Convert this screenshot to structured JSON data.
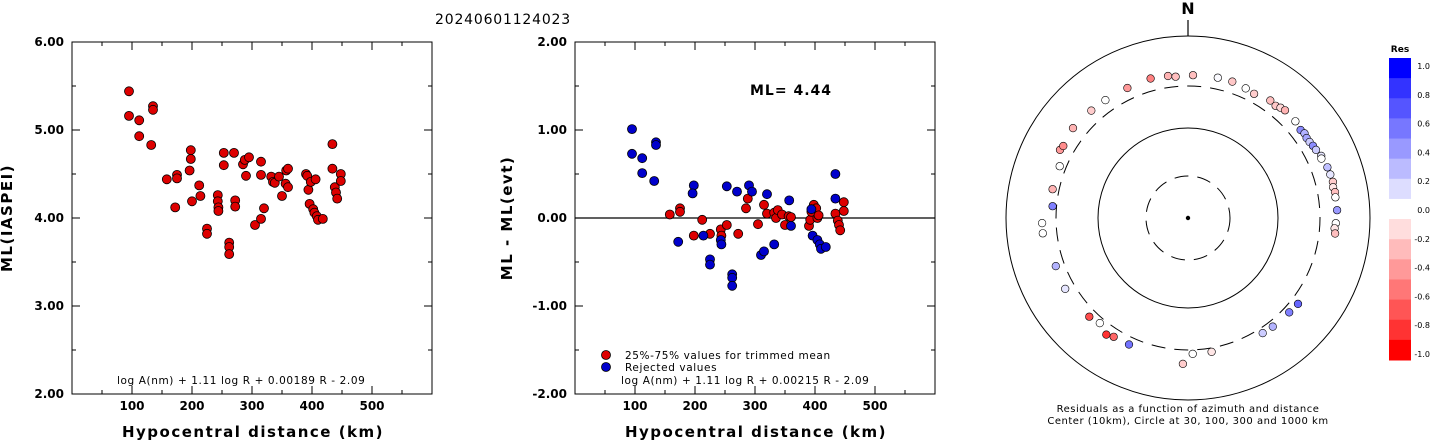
{
  "title": "20240601124023",
  "chart_data": [
    {
      "type": "scatter",
      "xlabel": "Hypocentral distance (km)",
      "ylabel": "ML(IASPEI)",
      "xlim": [
        0,
        600
      ],
      "ylim": [
        2.0,
        6.0
      ],
      "x_ticks": [
        "100",
        "200",
        "300",
        "400",
        "500"
      ],
      "y_ticks": [
        "2.00",
        "3.00",
        "4.00",
        "5.00",
        "6.00"
      ],
      "formula": "log A(nm) + 1.11 log R + 0.00189 R - 2.09",
      "series": [
        {
          "color": "#dd0000",
          "points": [
            [
              95,
              5.44
            ],
            [
              95,
              5.16
            ],
            [
              112,
              5.11
            ],
            [
              112,
              4.93
            ],
            [
              135,
              5.27
            ],
            [
              135,
              5.23
            ],
            [
              132,
              4.83
            ],
            [
              158,
              4.44
            ],
            [
              172,
              4.12
            ],
            [
              175,
              4.49
            ],
            [
              175,
              4.45
            ],
            [
              198,
              4.77
            ],
            [
              198,
              4.67
            ],
            [
              196,
              4.54
            ],
            [
              200,
              4.19
            ],
            [
              212,
              4.37
            ],
            [
              214,
              4.25
            ],
            [
              225,
              3.88
            ],
            [
              225,
              3.82
            ],
            [
              243,
              4.26
            ],
            [
              243,
              4.19
            ],
            [
              244,
              4.12
            ],
            [
              244,
              4.08
            ],
            [
              253,
              4.74
            ],
            [
              253,
              4.6
            ],
            [
              262,
              3.72
            ],
            [
              262,
              3.67
            ],
            [
              262,
              3.59
            ],
            [
              270,
              4.74
            ],
            [
              272,
              4.2
            ],
            [
              272,
              4.13
            ],
            [
              285,
              4.61
            ],
            [
              288,
              4.66
            ],
            [
              290,
              4.48
            ],
            [
              295,
              4.69
            ],
            [
              305,
              3.92
            ],
            [
              315,
              4.64
            ],
            [
              315,
              4.49
            ],
            [
              315,
              3.99
            ],
            [
              320,
              4.11
            ],
            [
              332,
              4.47
            ],
            [
              335,
              4.41
            ],
            [
              338,
              4.4
            ],
            [
              345,
              4.47
            ],
            [
              350,
              4.25
            ],
            [
              356,
              4.39
            ],
            [
              357,
              4.54
            ],
            [
              360,
              4.35
            ],
            [
              360,
              4.56
            ],
            [
              390,
              4.5
            ],
            [
              392,
              4.48
            ],
            [
              394,
              4.32
            ],
            [
              396,
              4.16
            ],
            [
              398,
              4.41
            ],
            [
              402,
              4.1
            ],
            [
              404,
              4.06
            ],
            [
              406,
              4.44
            ],
            [
              408,
              4.02
            ],
            [
              410,
              3.98
            ],
            [
              418,
              3.99
            ],
            [
              434,
              4.84
            ],
            [
              434,
              4.56
            ],
            [
              438,
              4.35
            ],
            [
              440,
              4.29
            ],
            [
              442,
              4.22
            ],
            [
              448,
              4.5
            ],
            [
              448,
              4.42
            ]
          ]
        }
      ]
    },
    {
      "type": "scatter",
      "xlabel": "Hypocentral distance (km)",
      "ylabel": "ML - ML(evt)",
      "xlim": [
        0,
        600
      ],
      "ylim": [
        -2.0,
        2.0
      ],
      "x_ticks": [
        "100",
        "200",
        "300",
        "400",
        "500"
      ],
      "y_ticks": [
        "-2.00",
        "-1.00",
        "0.00",
        "1.00",
        "2.00"
      ],
      "annotation": "ML= 4.44",
      "formula": "log A(nm) + 1.11 log R + 0.00215 R - 2.09",
      "series": [
        {
          "name": "25%-75% values for trimmed mean",
          "color": "#dd0000",
          "points": [
            [
              158,
              0.04
            ],
            [
              175,
              0.11
            ],
            [
              175,
              0.07
            ],
            [
              198,
              -0.2
            ],
            [
              212,
              -0.02
            ],
            [
              225,
              -0.18
            ],
            [
              243,
              -0.13
            ],
            [
              244,
              -0.2
            ],
            [
              253,
              -0.08
            ],
            [
              272,
              -0.18
            ],
            [
              285,
              0.11
            ],
            [
              288,
              0.22
            ],
            [
              305,
              -0.07
            ],
            [
              315,
              0.15
            ],
            [
              320,
              0.05
            ],
            [
              332,
              0.06
            ],
            [
              335,
              0.0
            ],
            [
              338,
              0.09
            ],
            [
              345,
              0.04
            ],
            [
              350,
              -0.08
            ],
            [
              356,
              0.02
            ],
            [
              360,
              0.01
            ],
            [
              390,
              -0.09
            ],
            [
              392,
              -0.02
            ],
            [
              394,
              0.07
            ],
            [
              398,
              0.15
            ],
            [
              402,
              0.11
            ],
            [
              404,
              0.0
            ],
            [
              406,
              0.03
            ],
            [
              434,
              0.05
            ],
            [
              438,
              -0.03
            ],
            [
              440,
              -0.08
            ],
            [
              442,
              -0.14
            ],
            [
              448,
              0.08
            ],
            [
              448,
              0.18
            ]
          ]
        },
        {
          "name": "Rejected values",
          "color": "#0000cc",
          "points": [
            [
              95,
              1.01
            ],
            [
              95,
              0.73
            ],
            [
              112,
              0.68
            ],
            [
              112,
              0.51
            ],
            [
              135,
              0.86
            ],
            [
              135,
              0.83
            ],
            [
              132,
              0.42
            ],
            [
              172,
              -0.27
            ],
            [
              198,
              0.37
            ],
            [
              196,
              0.28
            ],
            [
              214,
              -0.2
            ],
            [
              225,
              -0.47
            ],
            [
              225,
              -0.53
            ],
            [
              243,
              -0.25
            ],
            [
              244,
              -0.3
            ],
            [
              253,
              0.36
            ],
            [
              262,
              -0.64
            ],
            [
              262,
              -0.68
            ],
            [
              262,
              -0.77
            ],
            [
              270,
              0.3
            ],
            [
              290,
              0.37
            ],
            [
              295,
              0.3
            ],
            [
              310,
              -0.42
            ],
            [
              315,
              -0.38
            ],
            [
              320,
              0.27
            ],
            [
              332,
              -0.3
            ],
            [
              357,
              0.2
            ],
            [
              360,
              -0.09
            ],
            [
              394,
              0.1
            ],
            [
              396,
              -0.2
            ],
            [
              404,
              -0.25
            ],
            [
              408,
              -0.3
            ],
            [
              410,
              -0.35
            ],
            [
              418,
              -0.33
            ],
            [
              434,
              0.5
            ],
            [
              434,
              0.22
            ]
          ]
        }
      ]
    },
    {
      "type": "scatter",
      "subtype": "polar",
      "north_label": "N",
      "caption": [
        "Residuals as a function of azimuth and distance",
        "Center (10km), Circle at 30, 100, 300 and 1000 km"
      ],
      "colorbar_title": "Res",
      "colorbar_ticks": [
        "1.0",
        "0.8",
        "0.6",
        "0.4",
        "0.2",
        "0.0",
        "-0.2",
        "-0.4",
        "-0.6",
        "-0.8",
        "-1.0"
      ],
      "colorbar_colors": [
        "#0000ff",
        "#3333ff",
        "#5555ff",
        "#7777ff",
        "#9999ff",
        "#bbbbff",
        "#ddddff",
        "#ffffff",
        "#ffdddd",
        "#ffbbbb",
        "#ff9999",
        "#ff7777",
        "#ff5555",
        "#ff3333",
        "#ff0000"
      ],
      "ring_styles": [
        "dashed",
        "solid",
        "dashed",
        "solid"
      ],
      "points": [
        [
          2,
          390,
          -0.25
        ],
        [
          12,
          395,
          0.02
        ],
        [
          18,
          395,
          -0.22
        ],
        [
          24,
          380,
          0.0
        ],
        [
          28,
          370,
          -0.2
        ],
        [
          35,
          395,
          -0.25
        ],
        [
          38,
          385,
          -0.22
        ],
        [
          40,
          400,
          -0.15
        ],
        [
          42,
          410,
          -0.3
        ],
        [
          48,
          405,
          0.0
        ],
        [
          52,
          390,
          0.45
        ],
        [
          54,
          400,
          0.3
        ],
        [
          56,
          392,
          0.35
        ],
        [
          58,
          395,
          0.2
        ],
        [
          60,
          404,
          0.45
        ],
        [
          62,
          410,
          0.2
        ],
        [
          65,
          430,
          0.1
        ],
        [
          66,
          420,
          0.0
        ],
        [
          70,
          445,
          0.25
        ],
        [
          73,
          450,
          0.1
        ],
        [
          76,
          455,
          -0.2
        ],
        [
          78,
          445,
          -0.1
        ],
        [
          80,
          455,
          -0.25
        ],
        [
          82,
          450,
          0.0
        ],
        [
          87,
          455,
          0.4
        ],
        [
          92,
          440,
          0.0
        ],
        [
          94,
          430,
          -0.1
        ],
        [
          96,
          440,
          -0.25
        ],
        [
          128,
          360,
          0.6
        ],
        [
          133,
          350,
          0.5
        ],
        [
          142,
          345,
          0.3
        ],
        [
          147,
          340,
          0.2
        ],
        [
          170,
          330,
          -0.1
        ],
        [
          178,
          330,
          0.0
        ],
        [
          182,
          420,
          -0.2
        ],
        [
          205,
          360,
          0.55
        ],
        [
          212,
          365,
          -0.6
        ],
        [
          215,
          385,
          -0.8
        ],
        [
          220,
          340,
          0.0
        ],
        [
          225,
          360,
          -0.7
        ],
        [
          240,
          380,
          0.1
        ],
        [
          250,
          370,
          0.3
        ],
        [
          264,
          420,
          0.0
        ],
        [
          268,
          420,
          0.0
        ],
        [
          275,
          330,
          0.5
        ],
        [
          282,
          350,
          -0.3
        ],
        [
          292,
          350,
          0.0
        ],
        [
          298,
          410,
          -0.4
        ],
        [
          300,
          400,
          -0.45
        ],
        [
          308,
          420,
          -0.3
        ],
        [
          318,
          405,
          -0.2
        ],
        [
          325,
          400,
          0.0
        ],
        [
          335,
          395,
          -0.4
        ],
        [
          345,
          405,
          -0.5
        ],
        [
          352,
          395,
          -0.3
        ],
        [
          355,
          380,
          -0.25
        ]
      ]
    }
  ]
}
